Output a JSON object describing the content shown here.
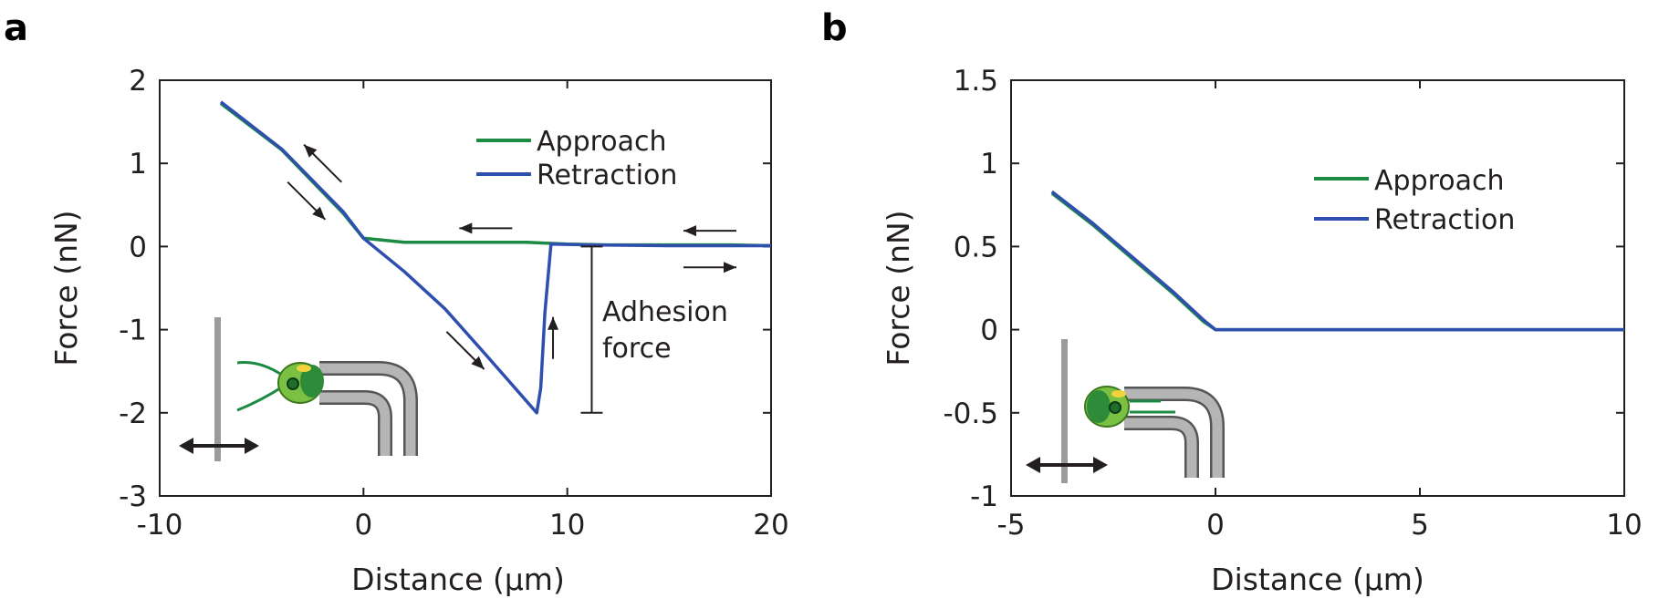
{
  "figure": {
    "colors": {
      "approach": "#1b8a43",
      "retraction": "#2e4fae",
      "axis": "#231f20",
      "cell": "#7ac143",
      "nucleus": "#2e8b3a",
      "pipette": "#9b9b9b"
    },
    "icons": {
      "cell": "green-cell-icon",
      "pipette": "micropipette-icon",
      "surface": "surface-bar-icon",
      "motion": "double-arrow-icon"
    }
  },
  "chart_data": [
    {
      "panel": "a",
      "type": "line",
      "title": "",
      "xlabel": "Distance (µm)",
      "ylabel": "Force (nN)",
      "xlim": [
        -10,
        20
      ],
      "ylim": [
        -3,
        2
      ],
      "xticks": [
        -10,
        0,
        10,
        20
      ],
      "xtick_labels": [
        "-10",
        "0",
        "10",
        "20"
      ],
      "yticks": [
        -3,
        -2,
        -1,
        0,
        1,
        2
      ],
      "ytick_labels": [
        "-3",
        "-2",
        "-1",
        "0",
        "1",
        "2"
      ],
      "grid": false,
      "legend": "top-right",
      "series": [
        {
          "name": "Approach",
          "x": [
            -7.0,
            -4.0,
            -1.0,
            0.0,
            2.0,
            5.0,
            8.0,
            10.0,
            12.0,
            15.0,
            18.0,
            20.0
          ],
          "y": [
            1.72,
            1.16,
            0.4,
            0.1,
            0.05,
            0.05,
            0.05,
            0.03,
            0.02,
            0.02,
            0.02,
            0.01
          ]
        },
        {
          "name": "Retraction",
          "x": [
            -7.0,
            -4.0,
            -1.0,
            0.0,
            2.0,
            4.0,
            6.0,
            8.5,
            8.7,
            8.9,
            9.2,
            11.0,
            15.0,
            20.0
          ],
          "y": [
            1.74,
            1.17,
            0.42,
            0.1,
            -0.3,
            -0.75,
            -1.3,
            -2.0,
            -1.7,
            -0.8,
            0.03,
            0.02,
            0.01,
            0.01
          ]
        }
      ],
      "annotations": [
        {
          "text": "Adhesion force",
          "lines": [
            "Adhesion",
            "force"
          ],
          "from_y": 0,
          "to_y": -2,
          "x": 11.2
        }
      ],
      "arrows": [
        {
          "dir": "up-left",
          "x": -2.0,
          "y": 1.0
        },
        {
          "dir": "down-right",
          "x": -2.8,
          "y": 0.55
        },
        {
          "dir": "left",
          "x": 6.0,
          "y": 0.22
        },
        {
          "dir": "left",
          "x": 17.0,
          "y": 0.19
        },
        {
          "dir": "right",
          "x": 17.0,
          "y": -0.25
        },
        {
          "dir": "down-right",
          "x": 5.0,
          "y": -1.25
        },
        {
          "dir": "up",
          "x": 9.3,
          "y": -1.1
        }
      ]
    },
    {
      "panel": "b",
      "type": "line",
      "title": "",
      "xlabel": "Distance (µm)",
      "ylabel": "Force (nN)",
      "xlim": [
        -5,
        10
      ],
      "ylim": [
        -1,
        1.5
      ],
      "xticks": [
        -5,
        0,
        5,
        10
      ],
      "xtick_labels": [
        "-5",
        "0",
        "5",
        "10"
      ],
      "yticks": [
        -1,
        -0.5,
        0,
        0.5,
        1,
        1.5
      ],
      "ytick_labels": [
        "-1",
        "-0.5",
        "0",
        "0.5",
        "1",
        "1.5"
      ],
      "grid": false,
      "legend": "top-right",
      "series": [
        {
          "name": "Approach",
          "x": [
            -4.0,
            -3.0,
            -2.0,
            -1.0,
            -0.3,
            0.0,
            2.0,
            5.0,
            8.0,
            10.0
          ],
          "y": [
            0.82,
            0.63,
            0.42,
            0.21,
            0.05,
            0.0,
            0.0,
            0.0,
            0.0,
            0.0
          ]
        },
        {
          "name": "Retraction",
          "x": [
            -4.0,
            -3.0,
            -2.0,
            -1.0,
            -0.3,
            0.0,
            2.0,
            5.0,
            8.0,
            10.0
          ],
          "y": [
            0.83,
            0.64,
            0.43,
            0.22,
            0.06,
            0.0,
            0.0,
            0.0,
            0.0,
            0.0
          ]
        }
      ]
    }
  ]
}
